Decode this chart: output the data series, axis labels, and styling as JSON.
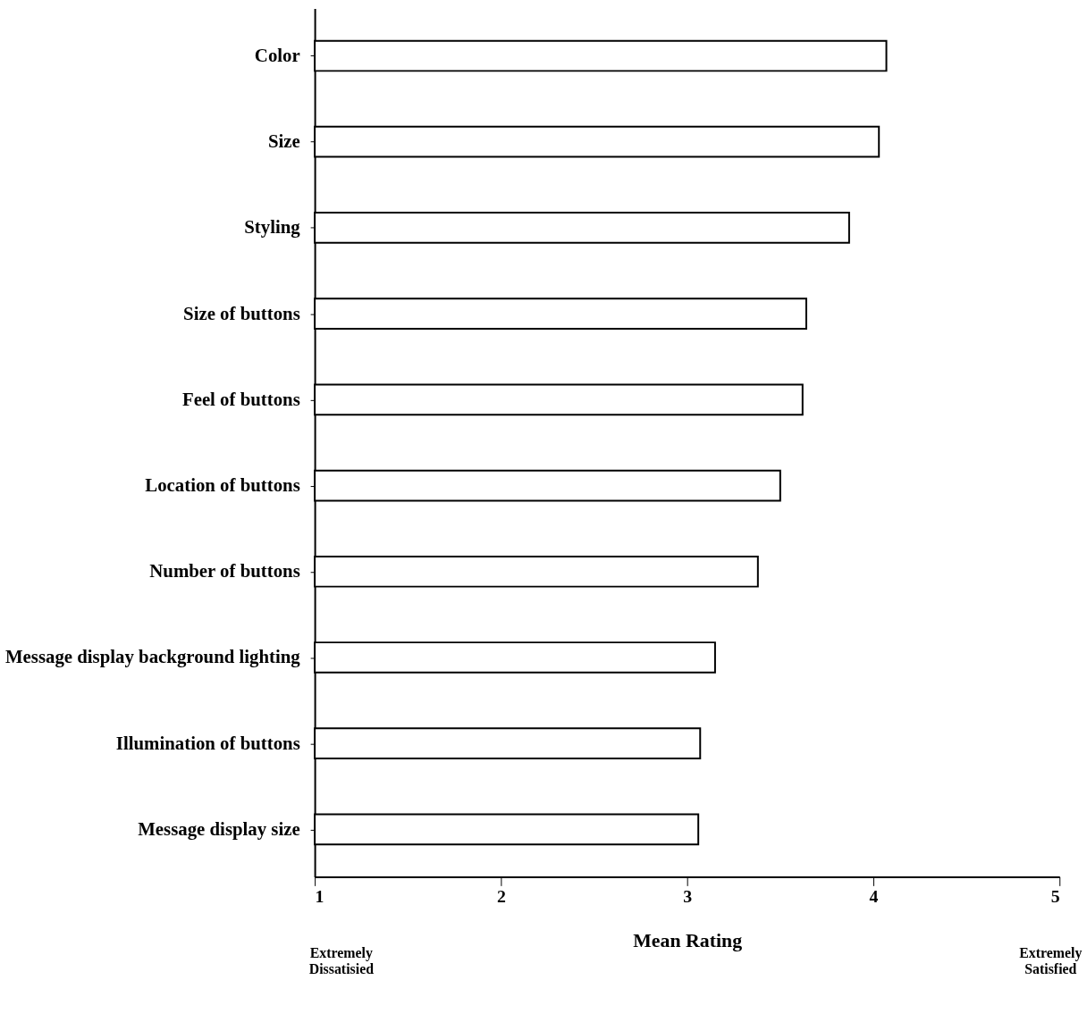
{
  "chart_data": {
    "type": "bar",
    "orientation": "horizontal",
    "xlabel": "Mean Rating",
    "categories": [
      "Color",
      "Size",
      "Styling",
      "Size of buttons",
      "Feel of buttons",
      "Location of buttons",
      "Number of buttons",
      "Message display background lighting",
      "Illumination of buttons",
      "Message display size"
    ],
    "values": [
      4.07,
      4.03,
      3.87,
      3.64,
      3.62,
      3.5,
      3.38,
      3.15,
      3.07,
      3.06
    ],
    "color": "#ffffff",
    "xlim": [
      1,
      5
    ],
    "xticks": [
      1,
      2,
      3,
      4,
      5
    ],
    "grid": false,
    "annotations": [
      "Extremely Dissatisied",
      "Extremely Satisfied"
    ]
  }
}
